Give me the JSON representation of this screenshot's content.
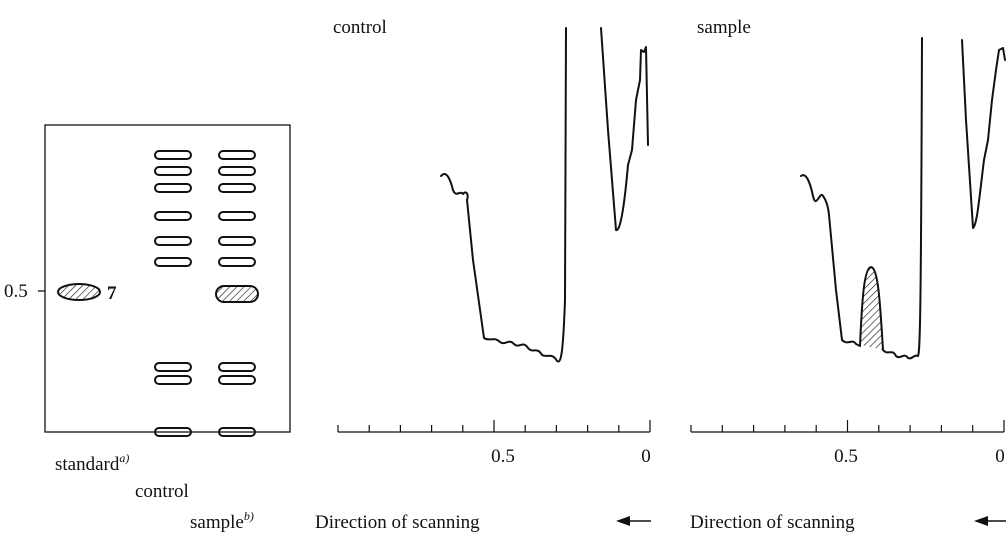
{
  "plate": {
    "rf_label": "0.5",
    "spot_label": "7",
    "lanes": [
      {
        "label": "standard",
        "note": "a)"
      },
      {
        "label": "control"
      },
      {
        "label": "sample",
        "note": "b)"
      }
    ]
  },
  "scans": [
    {
      "title": "control",
      "ticks": [
        "0.5",
        "0"
      ],
      "caption": "Direction of scanning"
    },
    {
      "title": "sample",
      "ticks": [
        "0.5",
        "0"
      ],
      "caption": "Direction of scanning"
    }
  ]
}
